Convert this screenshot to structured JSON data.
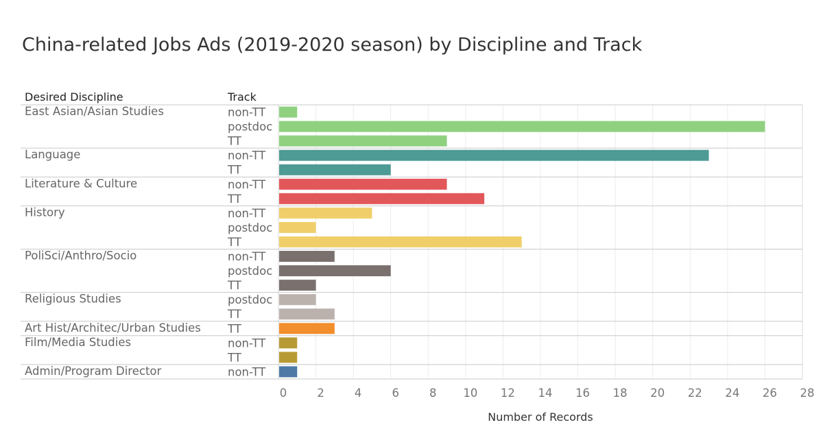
{
  "title": "China-related Jobs Ads (2019-2020 season) by Discipline and Track",
  "headers": {
    "discipline": "Desired Discipline",
    "track": "Track"
  },
  "chart_data": {
    "type": "bar",
    "orientation": "horizontal",
    "title": "China-related Jobs Ads (2019-2020 season) by Discipline and Track",
    "xlabel": "Number of Records",
    "ylabel": "",
    "xlim": [
      0,
      28
    ],
    "xticks": [
      0,
      2,
      4,
      6,
      8,
      10,
      12,
      14,
      16,
      18,
      20,
      22,
      24,
      26,
      28
    ],
    "grid": true,
    "groups": [
      {
        "name": "East Asian/Asian Studies",
        "color": "#8fd17f",
        "rows": [
          {
            "track": "non-TT",
            "value": 1
          },
          {
            "track": "postdoc",
            "value": 26
          },
          {
            "track": "TT",
            "value": 9
          }
        ]
      },
      {
        "name": "Language",
        "color": "#4e9a94",
        "rows": [
          {
            "track": "non-TT",
            "value": 23
          },
          {
            "track": "TT",
            "value": 6
          }
        ]
      },
      {
        "name": "Literature & Culture",
        "color": "#e2575a",
        "rows": [
          {
            "track": "non-TT",
            "value": 9
          },
          {
            "track": "TT",
            "value": 11
          }
        ]
      },
      {
        "name": "History",
        "color": "#f0cf6b",
        "rows": [
          {
            "track": "non-TT",
            "value": 5
          },
          {
            "track": "postdoc",
            "value": 2
          },
          {
            "track": "TT",
            "value": 13
          }
        ]
      },
      {
        "name": "PoliSci/Anthro/Socio",
        "color": "#7a716e",
        "rows": [
          {
            "track": "non-TT",
            "value": 3
          },
          {
            "track": "postdoc",
            "value": 6
          },
          {
            "track": "TT",
            "value": 2
          }
        ]
      },
      {
        "name": "Religious Studies",
        "color": "#bcb2ad",
        "rows": [
          {
            "track": "postdoc",
            "value": 2
          },
          {
            "track": "TT",
            "value": 3
          }
        ]
      },
      {
        "name": "Art Hist/Architec/Urban Studies",
        "color": "#f28e2c",
        "rows": [
          {
            "track": "TT",
            "value": 3
          }
        ]
      },
      {
        "name": "Film/Media Studies",
        "color": "#b89a35",
        "rows": [
          {
            "track": "non-TT",
            "value": 1
          },
          {
            "track": "TT",
            "value": 1
          }
        ]
      },
      {
        "name": "Admin/Program Director",
        "color": "#4e79a7",
        "rows": [
          {
            "track": "non-TT",
            "value": 1
          }
        ]
      }
    ]
  }
}
